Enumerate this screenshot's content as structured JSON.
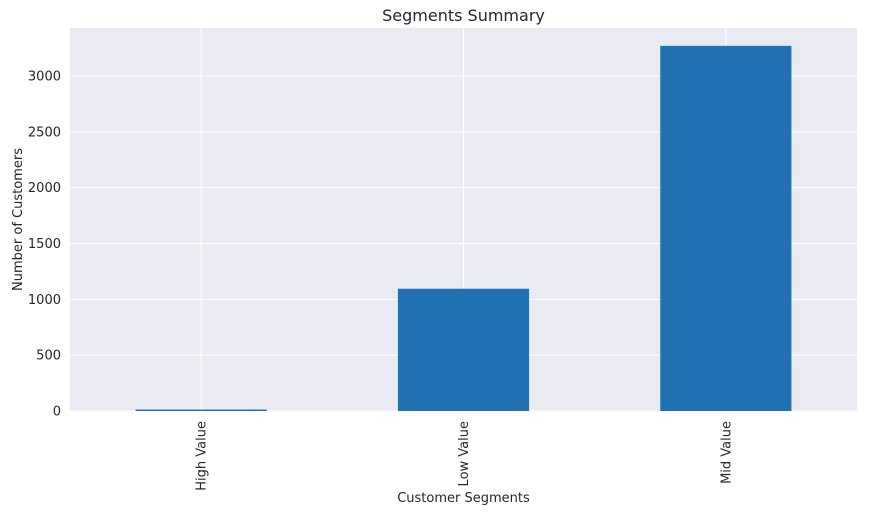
{
  "chart_data": {
    "type": "bar",
    "title": "Segments Summary",
    "xlabel": "Customer Segments",
    "ylabel": "Number of Customers",
    "categories": [
      "High Value",
      "Low Value",
      "Mid Value"
    ],
    "values": [
      13,
      1095,
      3270
    ],
    "ylim": [
      0,
      3430
    ],
    "yticks": [
      0,
      500,
      1000,
      1500,
      2000,
      2500,
      3000
    ],
    "grid": true,
    "colors": {
      "bar": "#2271b2",
      "plot_background": "#eaeaf2",
      "grid": "#ffffff",
      "text": "#262626"
    }
  }
}
